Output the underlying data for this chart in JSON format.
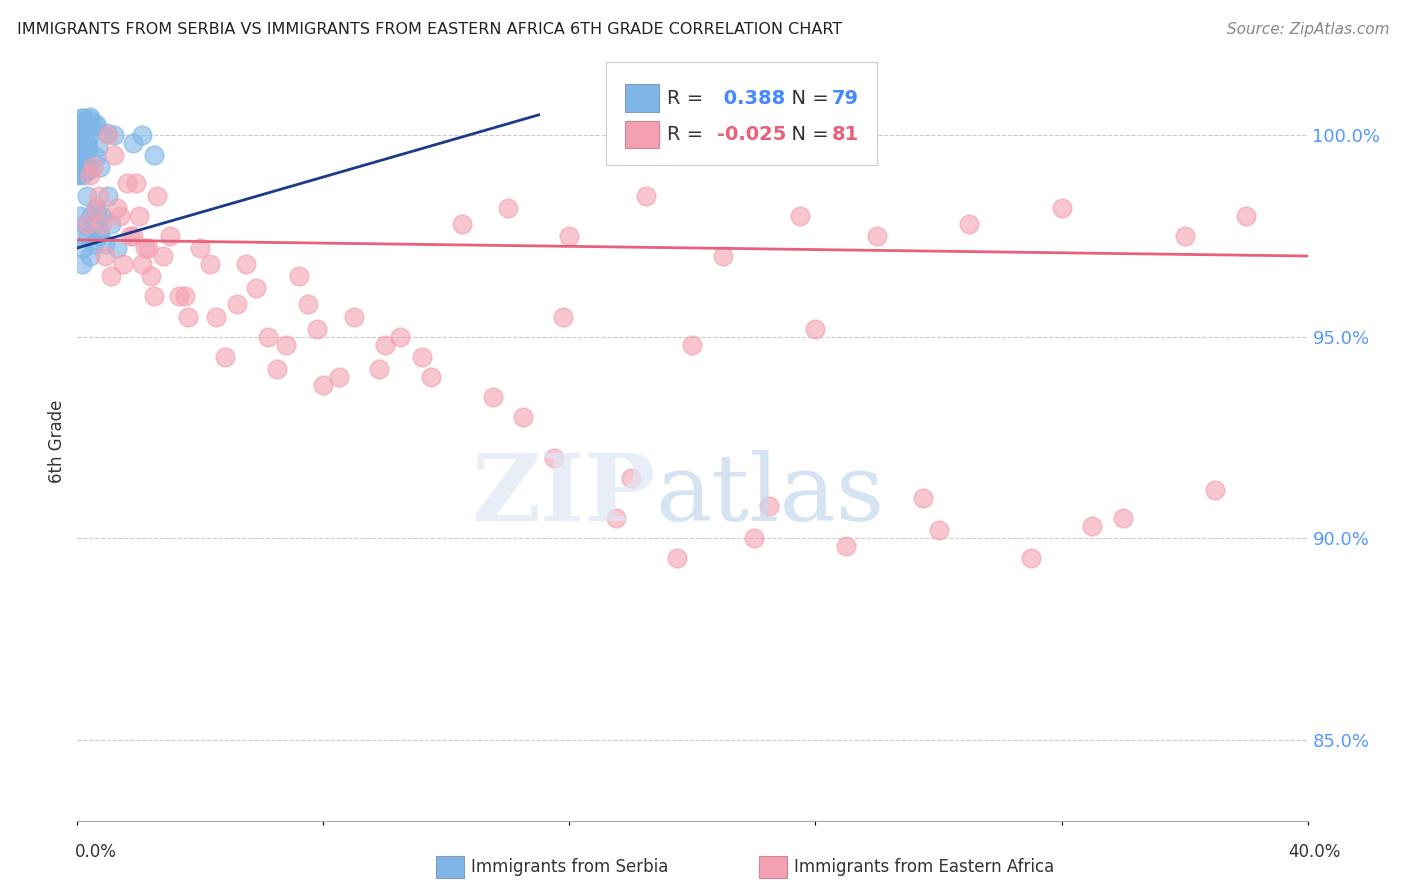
{
  "title": "IMMIGRANTS FROM SERBIA VS IMMIGRANTS FROM EASTERN AFRICA 6TH GRADE CORRELATION CHART",
  "source": "Source: ZipAtlas.com",
  "ylabel": "6th Grade",
  "ytick_values": [
    85.0,
    90.0,
    95.0,
    100.0
  ],
  "xlim": [
    0.0,
    40.0
  ],
  "ylim": [
    83.0,
    101.8
  ],
  "serbia_R": 0.388,
  "serbia_N": 79,
  "eastern_africa_R": -0.025,
  "eastern_africa_N": 81,
  "serbia_color": "#7EB6E8",
  "eastern_africa_color": "#F4A0B0",
  "serbia_line_color": "#1a3a8a",
  "eastern_africa_line_color": "#E8607A",
  "background_color": "#ffffff",
  "grid_color": "#cccccc",
  "serbia_line_x0": 0.0,
  "serbia_line_y0": 97.2,
  "serbia_line_x1": 15.0,
  "serbia_line_y1": 100.5,
  "ea_line_x0": 0.0,
  "ea_line_y0": 97.4,
  "ea_line_x1": 40.0,
  "ea_line_y1": 97.0
}
